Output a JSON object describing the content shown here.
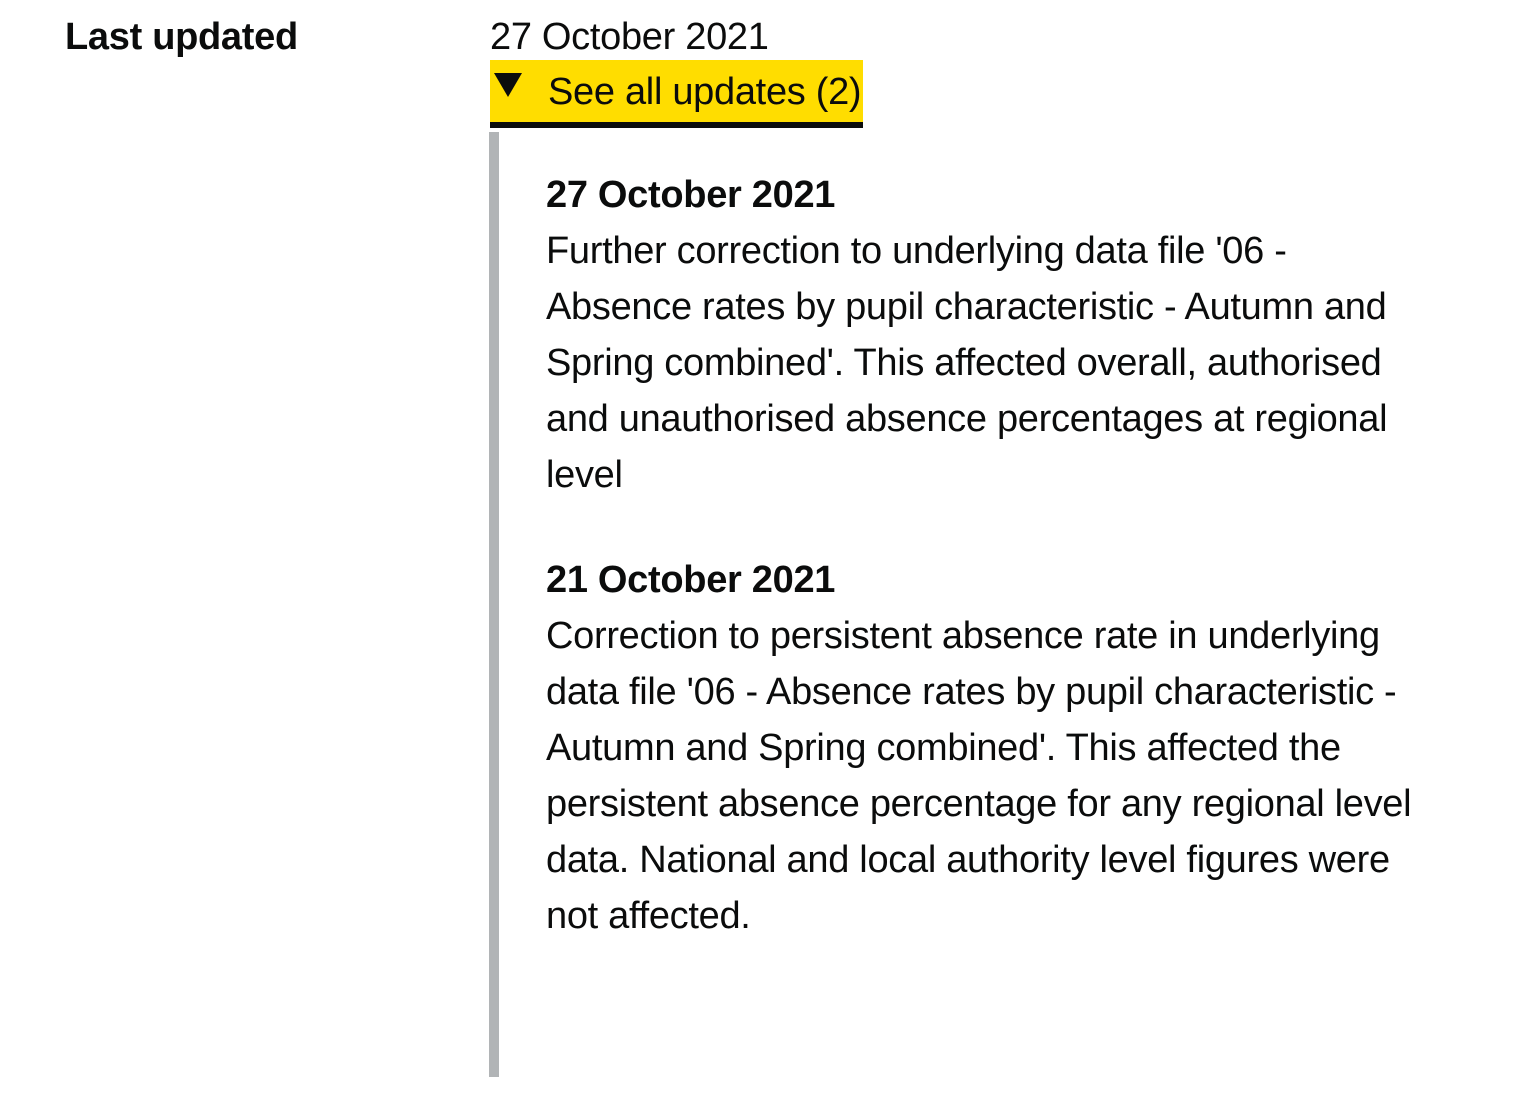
{
  "metadata": {
    "last_updated_label": "Last updated",
    "last_updated_date": "27 October 2021"
  },
  "updates_toggle": {
    "label": "See all updates (2)",
    "icon": "triangle-down-icon",
    "expanded": true,
    "highlight_color": "#ffdd00"
  },
  "updates": [
    {
      "date": "27 October 2021",
      "text": "Further correction to underlying data file '06 - Absence rates by pupil characteristic - Autumn and Spring combined'. This affected overall, authorised and unauthorised absence percentages at regional level"
    },
    {
      "date": "21 October 2021",
      "text": "Correction to persistent absence rate in underlying data file '06 - Absence rates by pupil characteristic - Autumn and Spring combined'. This affected the persistent absence percentage for any regional level data. National and local authority level figures were not affected."
    }
  ]
}
